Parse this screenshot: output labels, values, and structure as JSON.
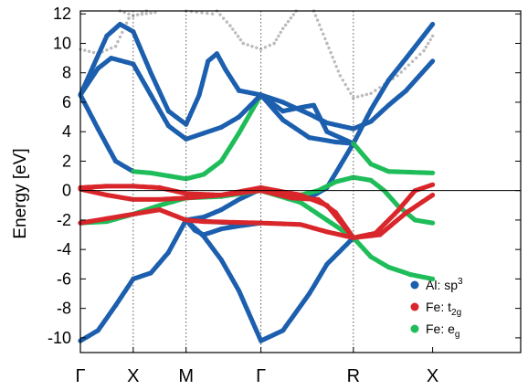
{
  "chart_data": {
    "type": "scatter",
    "title": "",
    "xlabel": "",
    "ylabel": "Energy [eV]",
    "ylim": [
      -11,
      12.2
    ],
    "yticks": [
      -10,
      -8,
      -6,
      -4,
      -2,
      0,
      2,
      4,
      6,
      8,
      10,
      12
    ],
    "xlim": [
      0,
      5
    ],
    "kpoints": [
      {
        "label": "Γ",
        "x": 0
      },
      {
        "label": "X",
        "x": 0.6
      },
      {
        "label": "M",
        "x": 1.2
      },
      {
        "label": "Γ",
        "x": 2.05
      },
      {
        "label": "R",
        "x": 3.1
      },
      {
        "label": "X",
        "x": 4.0
      }
    ],
    "fermi_level": 0,
    "legend_position": "bottom-right",
    "series": [
      {
        "name": "Al: sp",
        "sup": "3",
        "sub": "",
        "color": "#1c5fae"
      },
      {
        "name": "Fe: t",
        "sup": "",
        "sub": "2g",
        "color": "#d9262b"
      },
      {
        "name": "Fe: e",
        "sup": "",
        "sub": "g",
        "color": "#1fbd5a"
      }
    ],
    "colors": {
      "gray": "#bbbbbb",
      "sp3": "#1c5fae",
      "t2g": "#d9262b",
      "eg": "#1fbd5a"
    },
    "bands": [
      {
        "color": "sp3",
        "points": [
          [
            0,
            -10.2
          ],
          [
            0.2,
            -9.5
          ],
          [
            0.4,
            -7.8
          ],
          [
            0.6,
            -6.0
          ],
          [
            0.8,
            -5.6
          ],
          [
            1.0,
            -4.2
          ],
          [
            1.2,
            -2.0
          ]
        ]
      },
      {
        "color": "sp3",
        "points": [
          [
            0,
            6.5
          ],
          [
            0.2,
            8.3
          ],
          [
            0.35,
            9.0
          ],
          [
            0.6,
            8.6
          ],
          [
            0.8,
            6.5
          ],
          [
            1.0,
            4.4
          ],
          [
            1.2,
            3.5
          ]
        ]
      },
      {
        "color": "sp3",
        "points": [
          [
            0,
            6.5
          ],
          [
            0.15,
            8.5
          ],
          [
            0.3,
            10.5
          ],
          [
            0.45,
            11.3
          ],
          [
            0.6,
            10.8
          ],
          [
            0.8,
            8.0
          ],
          [
            1.0,
            5.4
          ],
          [
            1.2,
            4.5
          ]
        ]
      },
      {
        "color": "sp3",
        "points": [
          [
            0,
            6.5
          ],
          [
            0.2,
            4.2
          ],
          [
            0.4,
            2.0
          ],
          [
            0.6,
            1.3
          ]
        ]
      },
      {
        "color": "eg",
        "points": [
          [
            0.6,
            1.3
          ],
          [
            0.8,
            1.2
          ],
          [
            1.0,
            1.0
          ],
          [
            1.2,
            0.8
          ],
          [
            1.4,
            1.1
          ],
          [
            1.6,
            2.0
          ],
          [
            1.8,
            3.9
          ],
          [
            2.05,
            6.5
          ]
        ]
      },
      {
        "color": "sp3",
        "points": [
          [
            1.2,
            3.5
          ],
          [
            1.4,
            3.9
          ],
          [
            1.6,
            4.3
          ],
          [
            1.8,
            5.0
          ],
          [
            2.05,
            6.5
          ]
        ]
      },
      {
        "color": "sp3",
        "points": [
          [
            1.2,
            4.5
          ],
          [
            1.35,
            6.5
          ],
          [
            1.45,
            8.8
          ],
          [
            1.55,
            9.3
          ],
          [
            1.65,
            8.2
          ],
          [
            1.8,
            6.8
          ],
          [
            2.05,
            6.5
          ]
        ]
      },
      {
        "color": "sp3",
        "points": [
          [
            1.2,
            -2.0
          ],
          [
            1.45,
            -2.1
          ],
          [
            1.75,
            -2.2
          ],
          [
            2.05,
            -2.2
          ]
        ]
      },
      {
        "color": "sp3",
        "points": [
          [
            1.2,
            -2.0
          ],
          [
            1.4,
            -3.1
          ],
          [
            1.6,
            -4.7
          ],
          [
            1.8,
            -6.8
          ],
          [
            2.05,
            -10.2
          ]
        ]
      },
      {
        "color": "sp3",
        "points": [
          [
            1.2,
            -2.0
          ],
          [
            1.4,
            -1.8
          ],
          [
            1.6,
            -1.3
          ],
          [
            1.8,
            -0.6
          ],
          [
            2.05,
            0.1
          ]
        ]
      },
      {
        "color": "sp3",
        "points": [
          [
            1.2,
            -2.0
          ],
          [
            1.3,
            -2.7
          ],
          [
            1.4,
            -3.0
          ],
          [
            1.6,
            -2.6
          ],
          [
            1.8,
            -2.4
          ],
          [
            2.05,
            -2.2
          ]
        ]
      },
      {
        "color": "sp3",
        "points": [
          [
            2.05,
            6.5
          ],
          [
            2.3,
            6.0
          ],
          [
            2.6,
            5.2
          ],
          [
            2.8,
            4.6
          ],
          [
            3.1,
            4.2
          ]
        ]
      },
      {
        "color": "sp3",
        "points": [
          [
            2.05,
            6.5
          ],
          [
            2.3,
            5.4
          ],
          [
            2.55,
            5.7
          ],
          [
            2.65,
            5.8
          ],
          [
            2.8,
            4.0
          ],
          [
            3.1,
            3.2
          ]
        ]
      },
      {
        "color": "sp3",
        "points": [
          [
            2.05,
            6.5
          ],
          [
            2.3,
            4.8
          ],
          [
            2.6,
            3.6
          ],
          [
            2.9,
            3.3
          ],
          [
            3.1,
            3.2
          ]
        ]
      },
      {
        "color": "sp3",
        "points": [
          [
            2.05,
            -10.2
          ],
          [
            2.3,
            -9.5
          ],
          [
            2.6,
            -7.0
          ],
          [
            2.8,
            -5.0
          ],
          [
            3.1,
            -3.2
          ]
        ]
      },
      {
        "color": "sp3",
        "points": [
          [
            3.1,
            3.2
          ],
          [
            3.3,
            5.5
          ],
          [
            3.5,
            7.5
          ],
          [
            3.7,
            9.0
          ],
          [
            4.0,
            11.3
          ]
        ]
      },
      {
        "color": "sp3",
        "points": [
          [
            3.1,
            4.2
          ],
          [
            3.3,
            4.7
          ],
          [
            3.5,
            5.8
          ],
          [
            3.7,
            6.8
          ],
          [
            4.0,
            8.8
          ]
        ]
      },
      {
        "color": "sp3",
        "points": [
          [
            3.1,
            3.2
          ],
          [
            2.95,
            1.7
          ],
          [
            2.8,
            0.2
          ],
          [
            2.6,
            -0.5
          ],
          [
            2.3,
            -0.1
          ],
          [
            2.05,
            0.1
          ]
        ]
      },
      {
        "color": "eg",
        "points": [
          [
            3.1,
            -3.2
          ],
          [
            3.3,
            -4.5
          ],
          [
            3.5,
            -5.2
          ],
          [
            3.75,
            -5.7
          ],
          [
            4.0,
            -6.0
          ]
        ]
      },
      {
        "color": "eg",
        "points": [
          [
            3.1,
            0.9
          ],
          [
            3.3,
            0.7
          ],
          [
            3.45,
            0.0
          ],
          [
            3.6,
            -1.0
          ],
          [
            3.8,
            -2.0
          ],
          [
            4.0,
            -2.2
          ]
        ]
      },
      {
        "color": "eg",
        "points": [
          [
            3.1,
            0.9
          ],
          [
            2.9,
            0.6
          ],
          [
            2.7,
            0.0
          ],
          [
            2.5,
            -0.3
          ],
          [
            2.3,
            -0.2
          ],
          [
            2.05,
            0.1
          ]
        ]
      },
      {
        "color": "eg",
        "points": [
          [
            3.1,
            3.2
          ],
          [
            3.3,
            1.8
          ],
          [
            3.5,
            1.3
          ],
          [
            4.0,
            1.2
          ]
        ]
      },
      {
        "color": "eg",
        "points": [
          [
            0,
            -2.2
          ],
          [
            0.3,
            -2.1
          ],
          [
            0.6,
            -1.6
          ],
          [
            0.9,
            -1.0
          ],
          [
            1.2,
            -0.5
          ],
          [
            1.6,
            -0.4
          ],
          [
            2.05,
            0.0
          ],
          [
            2.5,
            -0.8
          ],
          [
            2.8,
            -2.0
          ],
          [
            3.1,
            -3.2
          ]
        ]
      },
      {
        "color": "t2g",
        "points": [
          [
            0,
            0.2
          ],
          [
            0.3,
            0.3
          ],
          [
            0.6,
            0.3
          ],
          [
            0.9,
            0.2
          ],
          [
            1.2,
            -0.2
          ],
          [
            1.6,
            -0.3
          ],
          [
            2.05,
            0.2
          ],
          [
            2.5,
            -0.3
          ],
          [
            2.8,
            -1.0
          ],
          [
            3.1,
            -3.2
          ],
          [
            3.4,
            -3.0
          ],
          [
            3.7,
            -1.5
          ],
          [
            4.0,
            -0.3
          ]
        ]
      },
      {
        "color": "t2g",
        "points": [
          [
            0,
            0.1
          ],
          [
            0.3,
            -0.3
          ],
          [
            0.6,
            -0.6
          ],
          [
            0.9,
            -0.6
          ],
          [
            1.2,
            -0.5
          ],
          [
            1.6,
            -0.3
          ],
          [
            2.05,
            0.0
          ],
          [
            2.4,
            -0.5
          ],
          [
            2.7,
            -0.6
          ],
          [
            2.9,
            -1.5
          ],
          [
            3.1,
            -3.2
          ]
        ]
      },
      {
        "color": "t2g",
        "points": [
          [
            0,
            -2.2
          ],
          [
            0.3,
            -1.9
          ],
          [
            0.6,
            -1.6
          ],
          [
            0.9,
            -1.3
          ],
          [
            1.2,
            -2.0
          ],
          [
            1.4,
            -2.1
          ],
          [
            2.05,
            -2.2
          ],
          [
            2.5,
            -2.3
          ],
          [
            2.8,
            -2.8
          ],
          [
            3.1,
            -3.2
          ]
        ]
      },
      {
        "color": "t2g",
        "points": [
          [
            3.1,
            -3.2
          ],
          [
            3.35,
            -2.9
          ],
          [
            3.6,
            -1.4
          ],
          [
            3.8,
            0.0
          ],
          [
            4.0,
            0.4
          ]
        ]
      },
      {
        "color": "gray",
        "points": [
          [
            0,
            9.6
          ],
          [
            0.2,
            9.3
          ],
          [
            0.4,
            9.8
          ],
          [
            0.55,
            11.7
          ],
          [
            0.75,
            12.2
          ]
        ]
      },
      {
        "color": "gray",
        "points": [
          [
            0.45,
            12.2
          ],
          [
            0.6,
            11.9
          ],
          [
            0.85,
            12.1
          ]
        ]
      },
      {
        "color": "gray",
        "points": [
          [
            1.55,
            12.2
          ],
          [
            1.7,
            11.2
          ],
          [
            1.85,
            10.0
          ],
          [
            2.05,
            9.6
          ],
          [
            2.2,
            10.0
          ],
          [
            2.3,
            11.0
          ],
          [
            2.45,
            12.2
          ]
        ]
      },
      {
        "color": "gray",
        "points": [
          [
            2.65,
            12.2
          ],
          [
            2.8,
            10.0
          ],
          [
            2.95,
            7.8
          ],
          [
            3.1,
            6.3
          ],
          [
            3.3,
            6.6
          ],
          [
            3.6,
            7.8
          ],
          [
            3.9,
            9.5
          ],
          [
            4.0,
            10.5
          ]
        ]
      },
      {
        "color": "gray",
        "points": [
          [
            1.2,
            12.2
          ],
          [
            1.5,
            12.0
          ]
        ]
      }
    ]
  }
}
